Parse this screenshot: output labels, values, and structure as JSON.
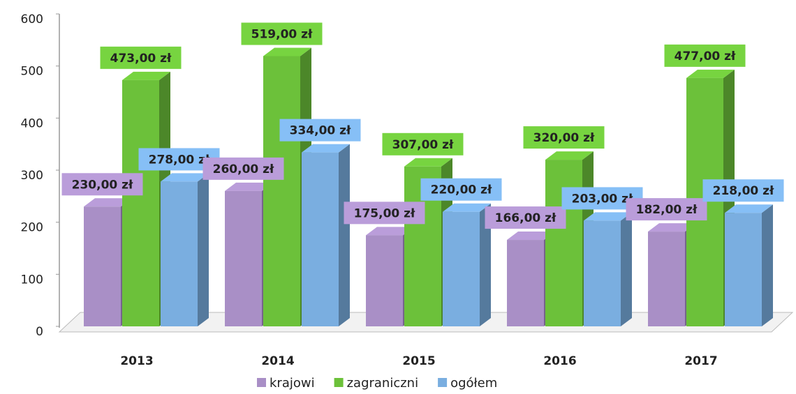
{
  "chart_data": {
    "type": "bar",
    "categories": [
      "2013",
      "2014",
      "2015",
      "2016",
      "2017"
    ],
    "series": [
      {
        "name": "krajowi",
        "color": "#a98fc6",
        "values": [
          230,
          260,
          175,
          166,
          182
        ],
        "value_labels": [
          "230,00 zł",
          "260,00 zł",
          "175,00 zł",
          "166,00 zł",
          "182,00 zł"
        ]
      },
      {
        "name": "zagraniczni",
        "color": "#6cc13a",
        "values": [
          473,
          519,
          307,
          320,
          477
        ],
        "value_labels": [
          "473,00 zł",
          "519,00 zł",
          "307,00 zł",
          "320,00 zł",
          "477,00 zł"
        ]
      },
      {
        "name": "ogółem",
        "color": "#7aaee0",
        "values": [
          278,
          334,
          220,
          203,
          218
        ],
        "value_labels": [
          "278,00 zł",
          "334,00 zł",
          "220,00 zł",
          "203,00 zł",
          "218,00 zł"
        ]
      }
    ],
    "ylim": [
      0,
      600
    ],
    "yticks": [
      0,
      100,
      200,
      300,
      400,
      500,
      600
    ],
    "legend": "bottom"
  }
}
